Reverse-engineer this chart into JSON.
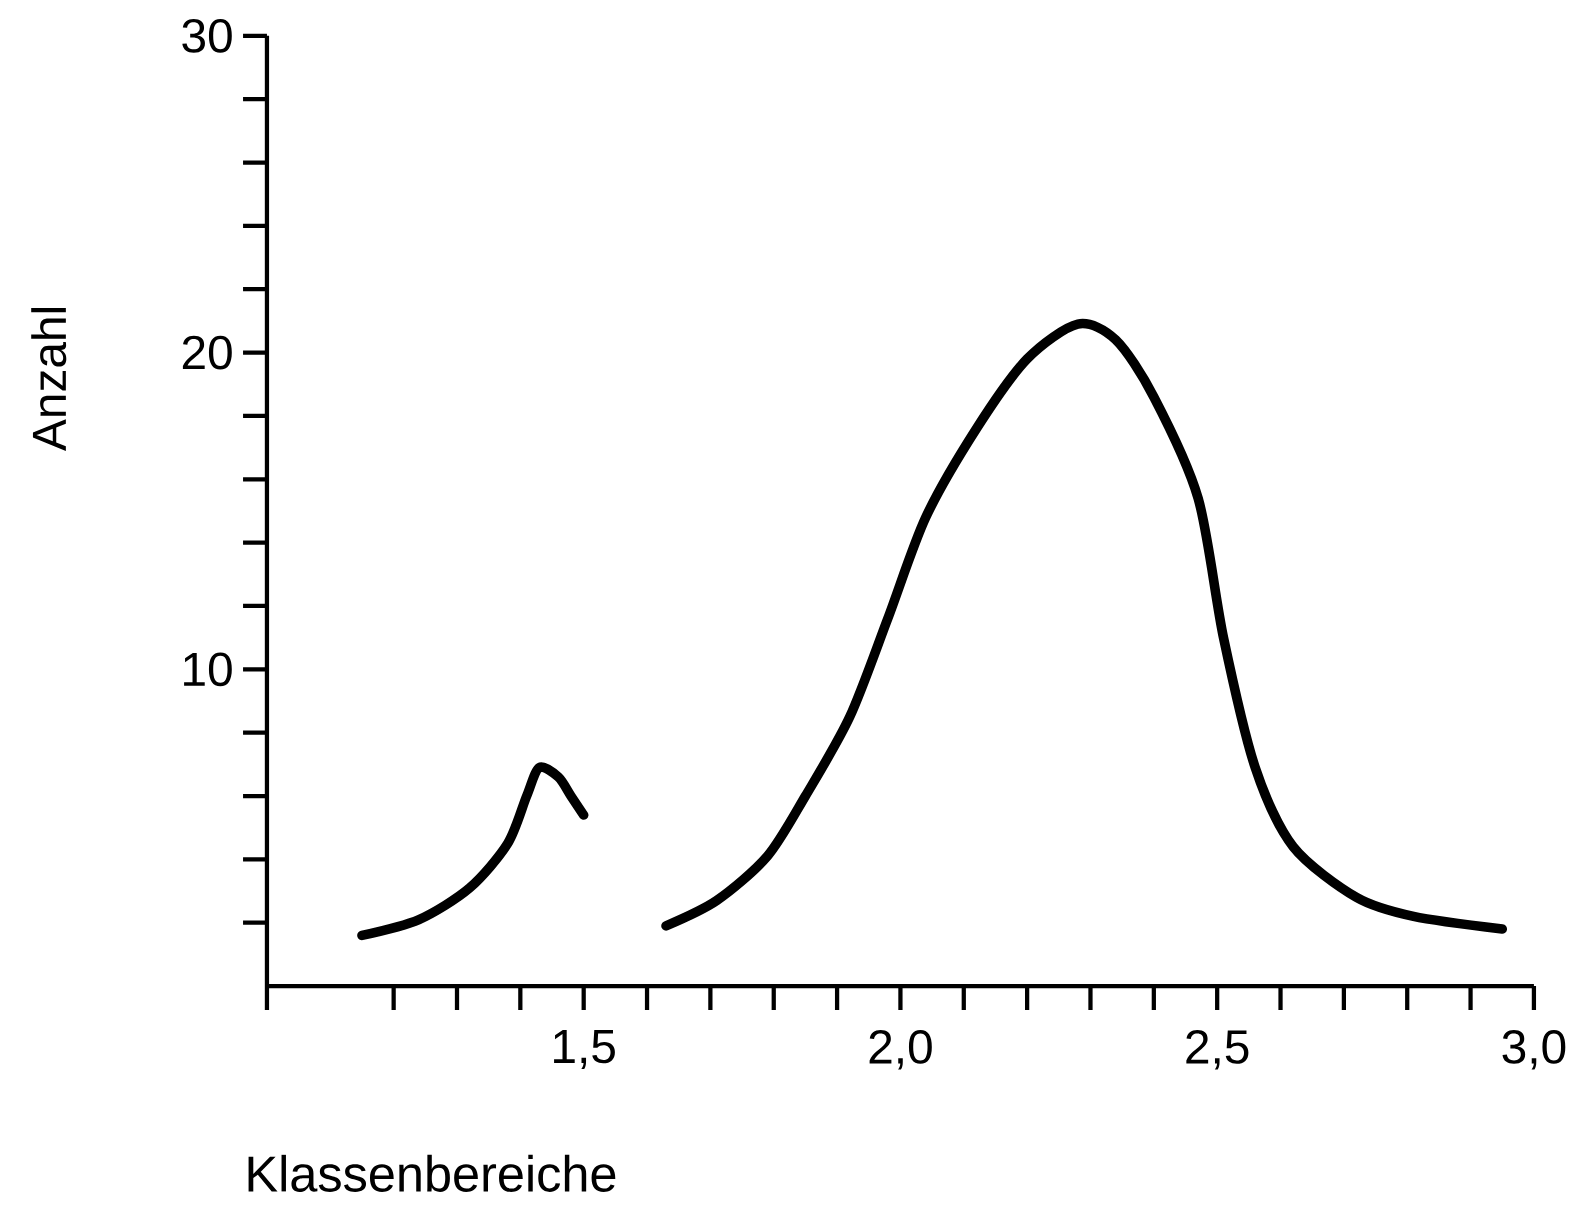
{
  "chart_data": {
    "type": "line",
    "xlabel": "Klassenbereiche",
    "ylabel": "Anzahl",
    "xlim": [
      1.0,
      3.0
    ],
    "ylim": [
      0,
      30
    ],
    "xticks": [
      {
        "value": 1.0,
        "label": null
      },
      {
        "value": 1.2,
        "label": null
      },
      {
        "value": 1.3,
        "label": null
      },
      {
        "value": 1.4,
        "label": null
      },
      {
        "value": 1.5,
        "label": "1,5"
      },
      {
        "value": 1.6,
        "label": null
      },
      {
        "value": 1.7,
        "label": null
      },
      {
        "value": 1.8,
        "label": null
      },
      {
        "value": 1.9,
        "label": null
      },
      {
        "value": 2.0,
        "label": "2,0"
      },
      {
        "value": 2.1,
        "label": null
      },
      {
        "value": 2.2,
        "label": null
      },
      {
        "value": 2.3,
        "label": null
      },
      {
        "value": 2.4,
        "label": null
      },
      {
        "value": 2.5,
        "label": "2,5"
      },
      {
        "value": 2.6,
        "label": null
      },
      {
        "value": 2.7,
        "label": null
      },
      {
        "value": 2.8,
        "label": null
      },
      {
        "value": 2.9,
        "label": null
      },
      {
        "value": 3.0,
        "label": "3,0"
      }
    ],
    "yticks": [
      {
        "value": 2,
        "label": null
      },
      {
        "value": 4,
        "label": null
      },
      {
        "value": 6,
        "label": null
      },
      {
        "value": 8,
        "label": null
      },
      10,
      {
        "value": 12,
        "label": null
      },
      {
        "value": 14,
        "label": null
      },
      {
        "value": 16,
        "label": null
      },
      {
        "value": 18,
        "label": null
      },
      20,
      {
        "value": 22,
        "label": null
      },
      {
        "value": 24,
        "label": null
      },
      {
        "value": 26,
        "label": null
      },
      {
        "value": 28,
        "label": null
      },
      30
    ],
    "grid": false,
    "marker": "none",
    "line_style": "solid",
    "series": [
      {
        "color": "#000000",
        "x": [
          1.15,
          1.24,
          1.32,
          1.38,
          1.41,
          1.43,
          1.46,
          1.48,
          1.5
        ],
        "values": [
          1.6,
          2.1,
          3.1,
          4.5,
          6.0,
          6.9,
          6.6,
          6.0,
          5.4
        ]
      },
      {
        "color": "#000000",
        "x": [
          1.63,
          1.71,
          1.79,
          1.85,
          1.92,
          1.98,
          2.04,
          2.12,
          2.2,
          2.28,
          2.34,
          2.4,
          2.47,
          2.51,
          2.56,
          2.62,
          2.72,
          2.81,
          2.95
        ],
        "values": [
          1.9,
          2.7,
          4.1,
          6.0,
          8.5,
          11.6,
          14.8,
          17.6,
          19.8,
          20.9,
          20.4,
          18.6,
          15.4,
          11.0,
          6.9,
          4.4,
          2.8,
          2.2,
          1.8
        ]
      }
    ]
  }
}
